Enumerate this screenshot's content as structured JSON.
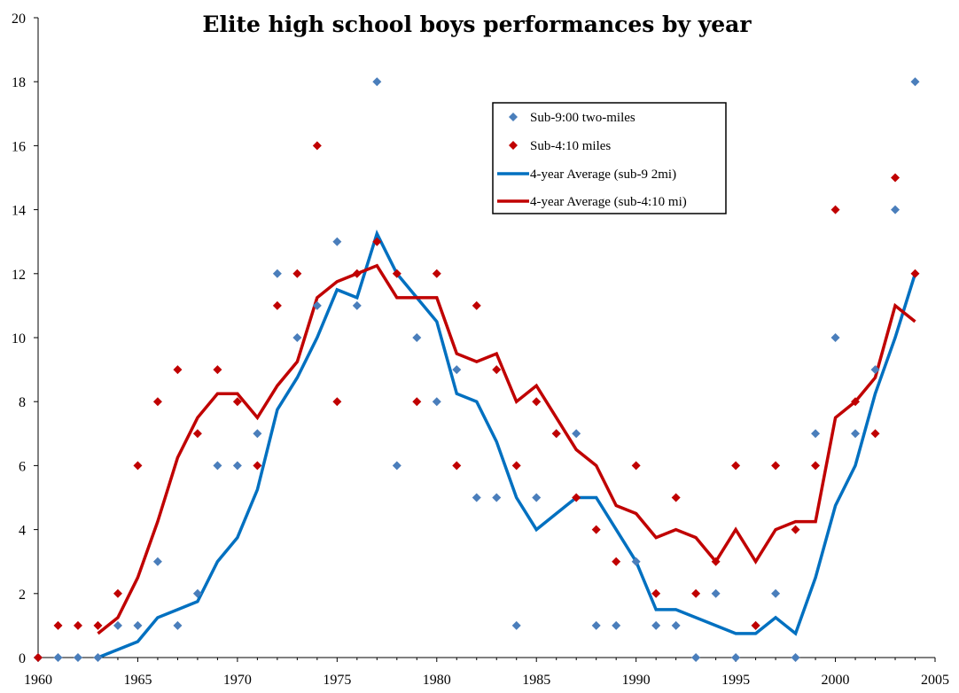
{
  "chart_data": {
    "type": "scatter",
    "title": "Elite high school boys performances by year",
    "xlabel": "",
    "ylabel": "",
    "xlim": [
      1960,
      2005
    ],
    "ylim": [
      0,
      20
    ],
    "x_ticks": [
      1960,
      1965,
      1970,
      1975,
      1980,
      1985,
      1990,
      1995,
      2000,
      2005
    ],
    "y_ticks": [
      0,
      2,
      4,
      6,
      8,
      10,
      12,
      14,
      16,
      18,
      20
    ],
    "grid": false,
    "legend_position": "top-right",
    "series": [
      {
        "name": "Sub-9:00 two-miles",
        "kind": "scatter",
        "marker": "diamond",
        "color": "#4A7EBB",
        "x": [
          1960,
          1961,
          1962,
          1963,
          1964,
          1965,
          1966,
          1967,
          1968,
          1969,
          1970,
          1971,
          1972,
          1973,
          1974,
          1975,
          1976,
          1977,
          1978,
          1979,
          1980,
          1981,
          1982,
          1983,
          1984,
          1985,
          1986,
          1987,
          1988,
          1989,
          1990,
          1991,
          1992,
          1993,
          1994,
          1995,
          1996,
          1997,
          1998,
          1999,
          2000,
          2001,
          2002,
          2003,
          2004
        ],
        "y": [
          0,
          0,
          0,
          0,
          1,
          1,
          3,
          1,
          2,
          6,
          6,
          7,
          12,
          10,
          11,
          13,
          11,
          18,
          6,
          10,
          8,
          9,
          5,
          5,
          1,
          5,
          7,
          7,
          1,
          1,
          3,
          1,
          1,
          0,
          2,
          0,
          1,
          2,
          0,
          7,
          10,
          7,
          9,
          14,
          18
        ]
      },
      {
        "name": "Sub-4:10 miles",
        "kind": "scatter",
        "marker": "diamond",
        "color": "#C00000",
        "x": [
          1960,
          1961,
          1962,
          1963,
          1964,
          1965,
          1966,
          1967,
          1968,
          1969,
          1970,
          1971,
          1972,
          1973,
          1974,
          1975,
          1976,
          1977,
          1978,
          1979,
          1980,
          1981,
          1982,
          1983,
          1984,
          1985,
          1986,
          1987,
          1988,
          1989,
          1990,
          1991,
          1992,
          1993,
          1994,
          1995,
          1996,
          1997,
          1998,
          1999,
          2000,
          2001,
          2002,
          2003,
          2004
        ],
        "y": [
          0,
          1,
          1,
          1,
          2,
          6,
          8,
          9,
          7,
          9,
          8,
          6,
          11,
          12,
          16,
          8,
          12,
          13,
          12,
          8,
          12,
          6,
          11,
          9,
          6,
          8,
          7,
          5,
          4,
          3,
          6,
          2,
          5,
          2,
          3,
          6,
          1,
          6,
          4,
          6,
          14,
          8,
          7,
          15,
          12
        ]
      },
      {
        "name": "4-year Average (sub-9 2mi)",
        "kind": "line",
        "color": "#0070C0",
        "x": [
          1963,
          1964,
          1965,
          1966,
          1967,
          1968,
          1969,
          1970,
          1971,
          1972,
          1973,
          1974,
          1975,
          1976,
          1977,
          1978,
          1979,
          1980,
          1981,
          1982,
          1983,
          1984,
          1985,
          1986,
          1987,
          1988,
          1989,
          1990,
          1991,
          1992,
          1993,
          1994,
          1995,
          1996,
          1997,
          1998,
          1999,
          2000,
          2001,
          2002,
          2003,
          2004
        ],
        "y": [
          0,
          0.25,
          0.5,
          1.25,
          1.5,
          1.75,
          3,
          3.75,
          5.25,
          7.75,
          8.75,
          10,
          11.5,
          11.25,
          13.25,
          12,
          11.25,
          10.5,
          8.25,
          8,
          6.75,
          5,
          4,
          4.5,
          5,
          5,
          4,
          3,
          1.5,
          1.5,
          1.25,
          1,
          0.75,
          0.75,
          1.25,
          0.75,
          2.5,
          4.75,
          6,
          8.25,
          10,
          12
        ]
      },
      {
        "name": "4-year Average (sub-4:10 mi)",
        "kind": "line",
        "color": "#C00000",
        "x": [
          1963,
          1964,
          1965,
          1966,
          1967,
          1968,
          1969,
          1970,
          1971,
          1972,
          1973,
          1974,
          1975,
          1976,
          1977,
          1978,
          1979,
          1980,
          1981,
          1982,
          1983,
          1984,
          1985,
          1986,
          1987,
          1988,
          1989,
          1990,
          1991,
          1992,
          1993,
          1994,
          1995,
          1996,
          1997,
          1998,
          1999,
          2000,
          2001,
          2002,
          2003,
          2004
        ],
        "y": [
          0.75,
          1.25,
          2.5,
          4.25,
          6.25,
          7.5,
          8.25,
          8.25,
          7.5,
          8.5,
          9.25,
          11.25,
          11.75,
          12,
          12.25,
          11.25,
          11.25,
          11.25,
          9.5,
          9.25,
          9.5,
          8,
          8.5,
          7.5,
          6.5,
          6,
          4.75,
          4.5,
          3.75,
          4,
          3.75,
          3,
          4,
          3,
          4,
          4.25,
          4.25,
          7.5,
          8,
          8.75,
          11,
          10.5
        ]
      }
    ]
  }
}
